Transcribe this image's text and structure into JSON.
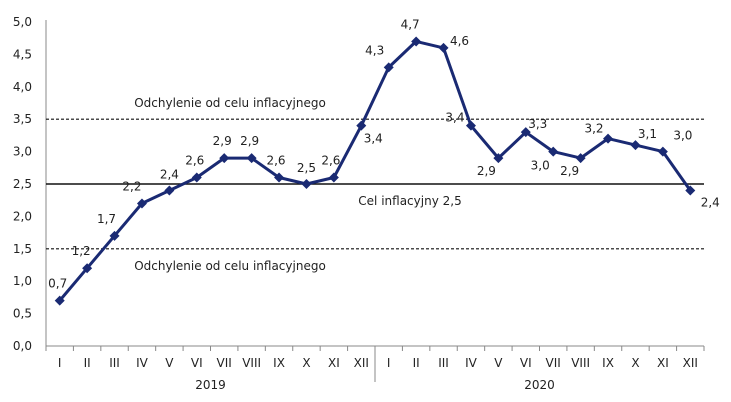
{
  "chart_data": {
    "type": "line",
    "categories": [
      "I",
      "II",
      "III",
      "IV",
      "V",
      "VI",
      "VII",
      "VIII",
      "IX",
      "X",
      "XI",
      "XII",
      "I",
      "II",
      "III",
      "IV",
      "V",
      "VI",
      "VII",
      "VIII",
      "IX",
      "X",
      "XI",
      "XII"
    ],
    "year_labels": [
      "2019",
      "2020"
    ],
    "series": [
      {
        "values": [
          0.7,
          1.2,
          1.7,
          2.2,
          2.4,
          2.6,
          2.9,
          2.9,
          2.6,
          2.5,
          2.6,
          3.4,
          4.3,
          4.7,
          4.6,
          3.4,
          2.9,
          3.3,
          3.0,
          2.9,
          3.2,
          3.1,
          3.0,
          2.4
        ],
        "labels": [
          "0,7",
          "1,2",
          "1,7",
          "2,2",
          "2,4",
          "2,6",
          "2,9",
          "2,9",
          "2,6",
          "2,5",
          "2,6",
          "3,4",
          "4,3",
          "4,7",
          "4,6",
          "3,4",
          "2,9",
          "3,3",
          "3,0",
          "2,9",
          "3,2",
          "3,1",
          "3,0",
          "2,4"
        ],
        "color": "#1a2a73"
      }
    ],
    "ylim": [
      0,
      5
    ],
    "yticks": [
      "0,0",
      "0,5",
      "1,0",
      "1,5",
      "2,0",
      "2,5",
      "3,0",
      "3,5",
      "4,0",
      "4,5",
      "5,0"
    ],
    "grid": false,
    "reference_lines": [
      {
        "value": 3.5,
        "style": "dashed",
        "label": "Odchylenie od celu inflacyjnego"
      },
      {
        "value": 2.5,
        "style": "solid",
        "label": "Cel inflacyjny 2,5"
      },
      {
        "value": 1.5,
        "style": "dashed",
        "label": "Odchylenie od celu inflacyjnego"
      }
    ]
  }
}
